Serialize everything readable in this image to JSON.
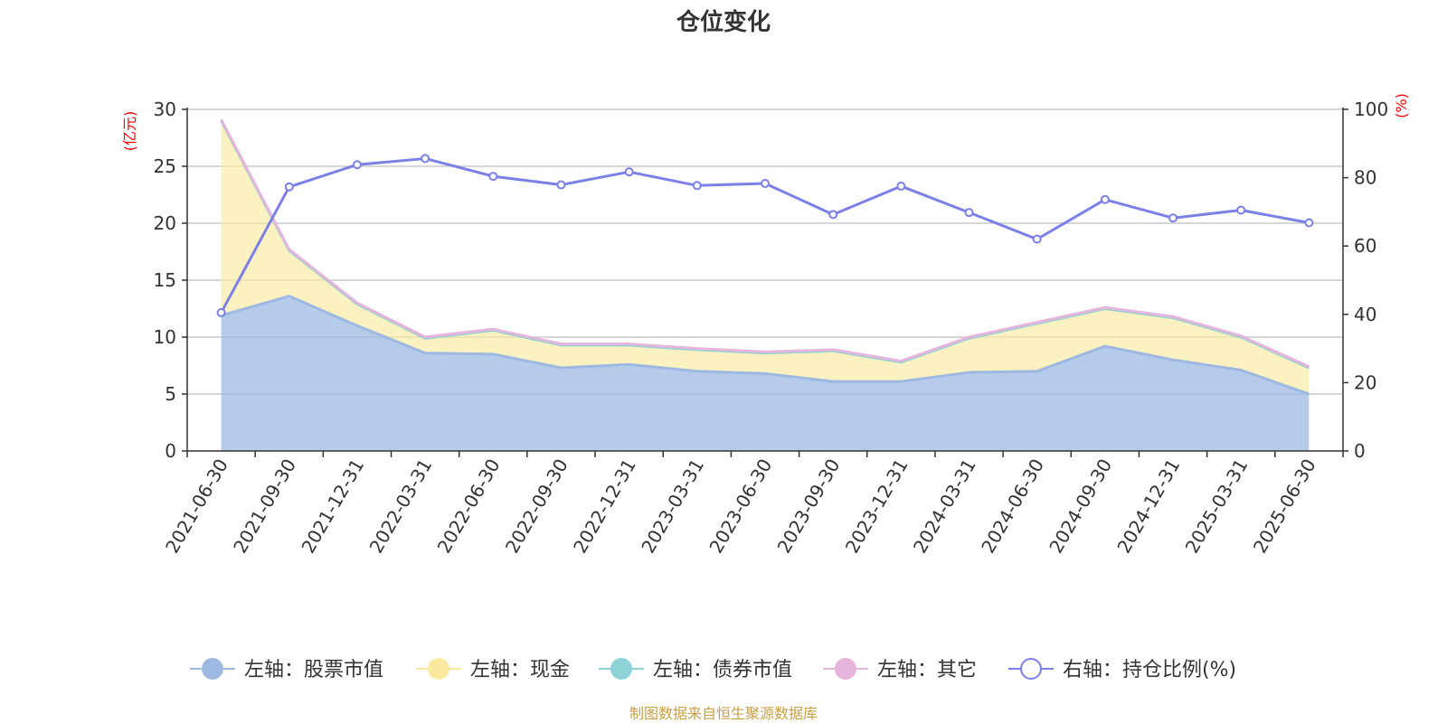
{
  "chart_data": {
    "type": "area",
    "title": "仓位变化",
    "left_axis_unit": "(亿元)",
    "right_axis_unit": "(%)",
    "x": [
      "2021-06-30",
      "2021-09-30",
      "2021-12-31",
      "2022-03-31",
      "2022-06-30",
      "2022-09-30",
      "2022-12-31",
      "2023-03-31",
      "2023-06-30",
      "2023-09-30",
      "2023-12-31",
      "2024-03-31",
      "2024-06-30",
      "2024-09-30",
      "2024-12-31",
      "2025-03-31",
      "2025-06-30"
    ],
    "left_ylim": [
      0,
      30
    ],
    "left_ticks": [
      "0",
      "5",
      "10",
      "15",
      "20",
      "25",
      "30"
    ],
    "right_ylim": [
      0,
      100
    ],
    "right_ticks": [
      "0",
      "20",
      "40",
      "60",
      "80",
      "100"
    ],
    "grid": true,
    "legend_position": "bottom",
    "series": [
      {
        "name": "左轴：股票市值",
        "axis": "left",
        "color": "#9db9e1",
        "values": [
          11.9,
          13.6,
          11.0,
          8.6,
          8.5,
          7.3,
          7.6,
          7.0,
          6.8,
          6.1,
          6.1,
          6.9,
          7.0,
          9.2,
          8.0,
          7.1,
          5.0
        ]
      },
      {
        "name": "左轴：现金",
        "axis": "left",
        "color": "#fae99f",
        "values": [
          17.1,
          4.0,
          1.9,
          1.3,
          2.1,
          2.0,
          1.7,
          1.9,
          1.8,
          2.7,
          1.7,
          3.0,
          4.2,
          3.3,
          3.7,
          2.9,
          2.3
        ]
      },
      {
        "name": "左轴：债券市值",
        "axis": "left",
        "color": "#8dd3d6",
        "values": [
          0,
          0,
          0,
          0,
          0,
          0,
          0,
          0,
          0,
          0,
          0,
          0,
          0,
          0,
          0,
          0,
          0
        ]
      },
      {
        "name": "左轴：其它",
        "axis": "left",
        "color": "#e5b5dc",
        "values": [
          0.1,
          0.1,
          0.1,
          0.1,
          0.1,
          0.1,
          0.1,
          0.1,
          0.1,
          0.1,
          0.1,
          0.1,
          0.1,
          0.1,
          0.1,
          0.1,
          0.1
        ]
      },
      {
        "name": "右轴：持仓比例(%)",
        "axis": "right",
        "color": "#7b7fe8",
        "values": [
          40.5,
          77.3,
          83.8,
          85.6,
          80.4,
          77.9,
          81.7,
          77.7,
          78.3,
          69.2,
          77.5,
          69.8,
          62.0,
          73.6,
          68.2,
          70.5,
          66.8
        ]
      }
    ],
    "source_note": "制图数据来自恒生聚源数据库"
  }
}
